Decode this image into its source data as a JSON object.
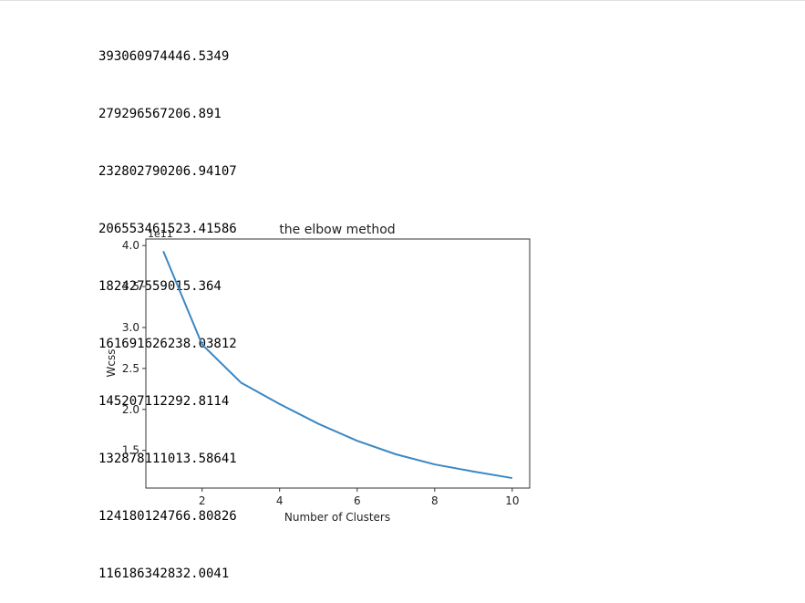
{
  "output": {
    "lines": [
      "393060974446.5349",
      "279296567206.891",
      "232802790206.94107",
      "206553461523.41586",
      "182427559015.364",
      "161691626238.03812",
      "145207112292.8114",
      "132878111013.58641",
      "124180124766.80826",
      "116186342832.0041"
    ]
  },
  "chart_data": {
    "type": "line",
    "title": "the elbow method",
    "xlabel": "Number of Clusters",
    "ylabel": "Wcss",
    "offset_label": "1e11",
    "scale": 100000000000.0,
    "x": [
      1,
      2,
      3,
      4,
      5,
      6,
      7,
      8,
      9,
      10
    ],
    "series": [
      {
        "values": [
          393060974446.5349,
          279296567206.891,
          232802790206.94107,
          206553461523.41586,
          182427559015.364,
          161691626238.03812,
          145207112292.8114,
          132878111013.58641,
          124180124766.80826,
          116186342832.0041
        ],
        "color": "#3a88c4"
      }
    ],
    "xticks": [
      2,
      4,
      6,
      8,
      10
    ],
    "xtick_labels": [
      "2",
      "4",
      "6",
      "8",
      "10"
    ],
    "yticks": [
      1.5,
      2.0,
      2.5,
      3.0,
      3.5,
      4.0
    ],
    "ytick_labels": [
      "1.5",
      "2.0",
      "2.5",
      "3.0",
      "3.5",
      "4.0"
    ],
    "xlim": [
      0.55,
      10.45
    ],
    "ylim": [
      1.04,
      4.08
    ],
    "grid": false
  }
}
